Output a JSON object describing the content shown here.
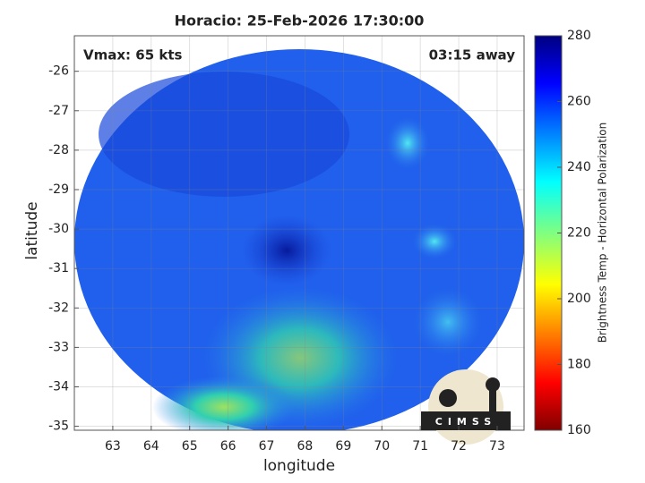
{
  "chart_data": {
    "type": "image",
    "title": "Horacio: 25-Feb-2026 17:30:00",
    "annotations": [
      "Vmax: 65 kts",
      "03:15 away"
    ],
    "xlabel": "longitude",
    "ylabel": "latitude",
    "xlim": [
      62.0,
      73.7
    ],
    "ylim": [
      -35.1,
      -25.1
    ],
    "xticks": [
      63,
      64,
      65,
      66,
      67,
      68,
      69,
      70,
      71,
      72,
      73
    ],
    "yticks": [
      -26,
      -27,
      -28,
      -29,
      -30,
      -31,
      -32,
      -33,
      -34,
      -35
    ],
    "grid": true,
    "colorbar": {
      "label": "Brightness Temp - Horizontal Polarization",
      "lim": [
        160,
        280
      ],
      "ticks": [
        160,
        180,
        200,
        220,
        240,
        260,
        280
      ]
    },
    "logo": "CIMSS"
  }
}
